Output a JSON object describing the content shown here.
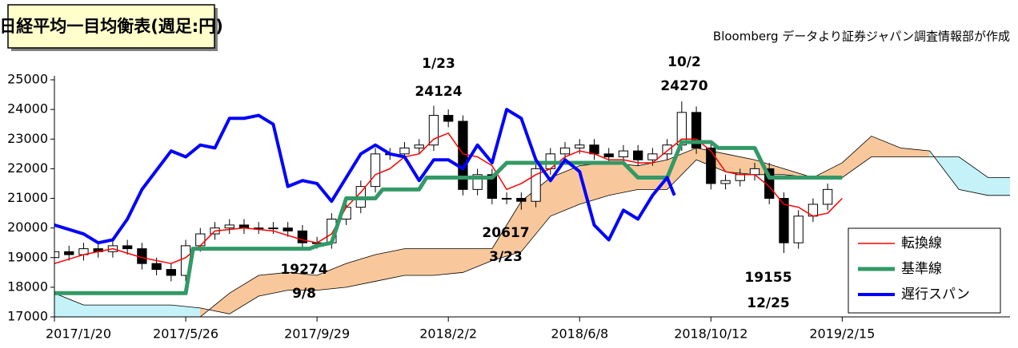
{
  "chart_data": {
    "type": "candlestick",
    "title": "日経平均一目均衡表(週足:円)",
    "source": "Bloomberg データより証券ジャパン調査情報部が作成",
    "xlim": [
      0,
      131
    ],
    "xticks": [
      {
        "value": 0,
        "label": "2017/1/20"
      },
      {
        "value": 18,
        "label": "2017/5/26"
      },
      {
        "value": 36,
        "label": "2017/9/29"
      },
      {
        "value": 54,
        "label": "2018/2/2"
      },
      {
        "value": 72,
        "label": "2018/6/8"
      },
      {
        "value": 90,
        "label": "2018/10/12"
      },
      {
        "value": 108,
        "label": "2019/2/15"
      }
    ],
    "ylim": [
      17000,
      25000
    ],
    "yticks": [
      17000,
      18000,
      19000,
      20000,
      21000,
      22000,
      23000,
      24000,
      25000
    ],
    "up_color": "#ffffff",
    "down_color": "#000000",
    "x": [
      0,
      2,
      4,
      6,
      8,
      10,
      12,
      14,
      16,
      18,
      20,
      22,
      24,
      26,
      28,
      30,
      32,
      34,
      36,
      38,
      40,
      42,
      44,
      46,
      48,
      50,
      52,
      54,
      56,
      58,
      60,
      62,
      64,
      66,
      68,
      70,
      72,
      74,
      76,
      78,
      80,
      82,
      84,
      86,
      88,
      90,
      92,
      94,
      96,
      98,
      100,
      102,
      104,
      106
    ],
    "open": [
      19000,
      19200,
      19100,
      19300,
      19200,
      19400,
      19300,
      18800,
      18600,
      18400,
      19400,
      19800,
      20000,
      20100,
      20000,
      20000,
      20000,
      19900,
      19500,
      19500,
      20300,
      20700,
      21400,
      22500,
      22500,
      22700,
      22800,
      23800,
      23600,
      21300,
      21800,
      21000,
      21000,
      20900,
      22000,
      22500,
      22700,
      22800,
      22500,
      22400,
      22600,
      22300,
      22500,
      22800,
      23900,
      22700,
      21500,
      21600,
      21800,
      22000,
      21000,
      19500,
      20400,
      20800
    ],
    "high": [
      19400,
      19400,
      19500,
      19500,
      19600,
      19600,
      19500,
      19000,
      18800,
      19600,
      20000,
      20200,
      20300,
      20300,
      20200,
      20200,
      20200,
      20100,
      19700,
      20500,
      20900,
      21600,
      22700,
      22700,
      22900,
      23000,
      24124,
      24000,
      23800,
      22000,
      22000,
      21200,
      21200,
      22200,
      22700,
      22900,
      23000,
      23000,
      22700,
      22800,
      22800,
      22700,
      23000,
      24270,
      24100,
      22900,
      21800,
      22000,
      22200,
      22200,
      21200,
      20600,
      21000,
      21500
    ],
    "low": [
      18800,
      18900,
      18900,
      19000,
      19000,
      19100,
      18600,
      18400,
      18200,
      18200,
      19200,
      19600,
      19800,
      19800,
      19800,
      19800,
      19700,
      19274,
      19300,
      19300,
      20100,
      20500,
      21200,
      22300,
      22300,
      22500,
      22600,
      23400,
      21100,
      21100,
      20800,
      20800,
      20617,
      20700,
      21800,
      22300,
      22500,
      22300,
      22200,
      22200,
      22100,
      22100,
      22300,
      22600,
      22500,
      21300,
      21300,
      21400,
      21600,
      20800,
      19155,
      19300,
      20200,
      20600
    ],
    "close": [
      19200,
      19100,
      19300,
      19200,
      19400,
      19300,
      18800,
      18600,
      18400,
      19400,
      19800,
      20000,
      20100,
      20000,
      20000,
      20000,
      19900,
      19500,
      19500,
      20300,
      20700,
      21400,
      22500,
      22500,
      22700,
      22800,
      23800,
      23600,
      21300,
      21800,
      21000,
      21000,
      20900,
      22000,
      22500,
      22700,
      22800,
      22500,
      22400,
      22600,
      22300,
      22500,
      22800,
      23900,
      22700,
      21500,
      21600,
      21800,
      22000,
      21000,
      19500,
      20400,
      20800,
      21300
    ],
    "cloud": {
      "x": [
        0,
        4,
        8,
        12,
        16,
        20,
        24,
        28,
        32,
        36,
        40,
        44,
        48,
        52,
        56,
        60,
        64,
        68,
        72,
        76,
        80,
        84,
        88,
        92,
        96,
        100,
        104,
        108,
        112,
        116,
        120,
        124,
        128,
        131
      ],
      "span_a": [
        17800,
        17400,
        17400,
        17400,
        17400,
        17300,
        17100,
        17700,
        17900,
        17900,
        18000,
        18200,
        18400,
        18400,
        18500,
        18900,
        19200,
        20400,
        20800,
        21100,
        21300,
        21300,
        22300,
        21900,
        21800,
        21800,
        21700,
        21700,
        22400,
        22400,
        22400,
        22400,
        21700,
        21700
      ],
      "span_b": [
        17000,
        17000,
        17000,
        17000,
        17000,
        17000,
        17800,
        18400,
        18500,
        18400,
        18800,
        19100,
        19300,
        19300,
        19300,
        19300,
        20900,
        21700,
        22100,
        22200,
        22100,
        22300,
        22700,
        22500,
        22300,
        22000,
        21700,
        22200,
        23100,
        22700,
        22600,
        21300,
        21100,
        21100
      ],
      "colors": [
        "#c4f2f8",
        "#f8c89c"
      ]
    },
    "series": [
      {
        "name": "転換線",
        "color": "#ff0000",
        "width": 1.5,
        "x": [
          0,
          4,
          8,
          12,
          16,
          18,
          20,
          22,
          26,
          30,
          34,
          36,
          38,
          40,
          42,
          44,
          46,
          48,
          50,
          52,
          54,
          56,
          58,
          60,
          62,
          64,
          66,
          68,
          70,
          72,
          74,
          76,
          78,
          80,
          82,
          84,
          86,
          88,
          90,
          92,
          94,
          96,
          98,
          100,
          102,
          104,
          106,
          108
        ],
        "values": [
          18800,
          19100,
          19300,
          19000,
          18800,
          19000,
          19400,
          19900,
          20000,
          19900,
          19600,
          19500,
          19800,
          20700,
          21200,
          21800,
          22000,
          22400,
          22500,
          23000,
          23200,
          22500,
          22400,
          22100,
          21300,
          21500,
          21800,
          22000,
          22400,
          22600,
          22500,
          22300,
          22300,
          22200,
          22200,
          22600,
          23000,
          23000,
          22600,
          21900,
          21800,
          21800,
          21400,
          20800,
          20700,
          20400,
          20500,
          21000
        ]
      },
      {
        "name": "基準線",
        "color": "#339966",
        "width": 5,
        "x": [
          0,
          18,
          19,
          35,
          36,
          38,
          40,
          44,
          45,
          50,
          51,
          60,
          62,
          78,
          80,
          84,
          86,
          90,
          91,
          96,
          98,
          108
        ],
        "values": [
          17800,
          17800,
          19300,
          19300,
          19400,
          19500,
          21000,
          21000,
          21300,
          21300,
          21700,
          21700,
          22200,
          22200,
          21700,
          21700,
          22900,
          22900,
          22700,
          22700,
          21700,
          21700
        ]
      },
      {
        "name": "遅行スパン",
        "color": "#0000ff",
        "width": 4,
        "x": [
          0,
          4,
          6,
          8,
          10,
          12,
          16,
          18,
          20,
          22,
          24,
          26,
          28,
          30,
          32,
          34,
          36,
          38,
          40,
          42,
          44,
          46,
          48,
          50,
          52,
          54,
          56,
          58,
          60,
          62,
          64,
          66,
          68,
          70,
          72,
          74,
          76,
          78,
          80,
          82,
          84,
          85
        ],
        "values": [
          20100,
          19800,
          19500,
          19600,
          20300,
          21300,
          22600,
          22400,
          22800,
          22700,
          23700,
          23700,
          23800,
          23500,
          21400,
          21600,
          21500,
          20900,
          21700,
          22500,
          22800,
          22500,
          22400,
          21600,
          22300,
          22300,
          22000,
          22800,
          22200,
          24000,
          23700,
          22300,
          21600,
          22300,
          21900,
          20100,
          19600,
          20600,
          20300,
          21100,
          21700,
          21100
        ]
      }
    ],
    "annotations": [
      {
        "lines": [
          "1/23",
          "24124"
        ]
      },
      {
        "lines": [
          "10/2",
          "24270"
        ]
      },
      {
        "lines": [
          "20617",
          "3/23"
        ]
      },
      {
        "lines": [
          "19274",
          "9/8"
        ]
      },
      {
        "lines": [
          "19155",
          "12/25"
        ]
      }
    ]
  }
}
